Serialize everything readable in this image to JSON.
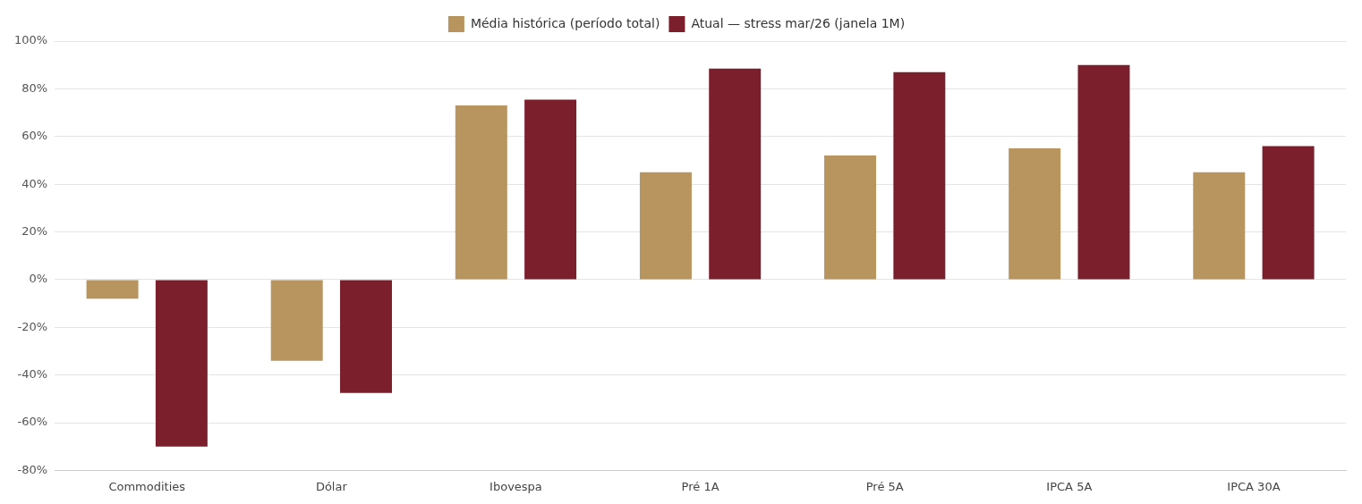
{
  "chart_data": {
    "type": "bar",
    "categories": [
      "Commodities",
      "Dólar",
      "Ibovespa",
      "Pré 1A",
      "Pré 5A",
      "IPCA 5A",
      "IPCA 30A"
    ],
    "series": [
      {
        "name": "Média histórica (período total)",
        "color": "#b8945e",
        "values": [
          -8,
          -34,
          73,
          45,
          52,
          55,
          45
        ]
      },
      {
        "name": "Atual — stress mar/26 (janela 1M)",
        "color": "#7b1f2d",
        "values": [
          -70,
          -47.5,
          75.5,
          88.5,
          87,
          90,
          56
        ]
      }
    ],
    "ylim": [
      -80,
      100
    ],
    "yticks": [
      {
        "value": -80,
        "label": "-80%"
      },
      {
        "value": -60,
        "label": "-60%"
      },
      {
        "value": -40,
        "label": "-40%"
      },
      {
        "value": -20,
        "label": "-20%"
      },
      {
        "value": 0,
        "label": "0%"
      },
      {
        "value": 20,
        "label": "20%"
      },
      {
        "value": 40,
        "label": "40%"
      },
      {
        "value": 60,
        "label": "60%"
      },
      {
        "value": 80,
        "label": "80%"
      },
      {
        "value": 100,
        "label": "100%"
      }
    ],
    "grid": "y",
    "legend": "top"
  }
}
